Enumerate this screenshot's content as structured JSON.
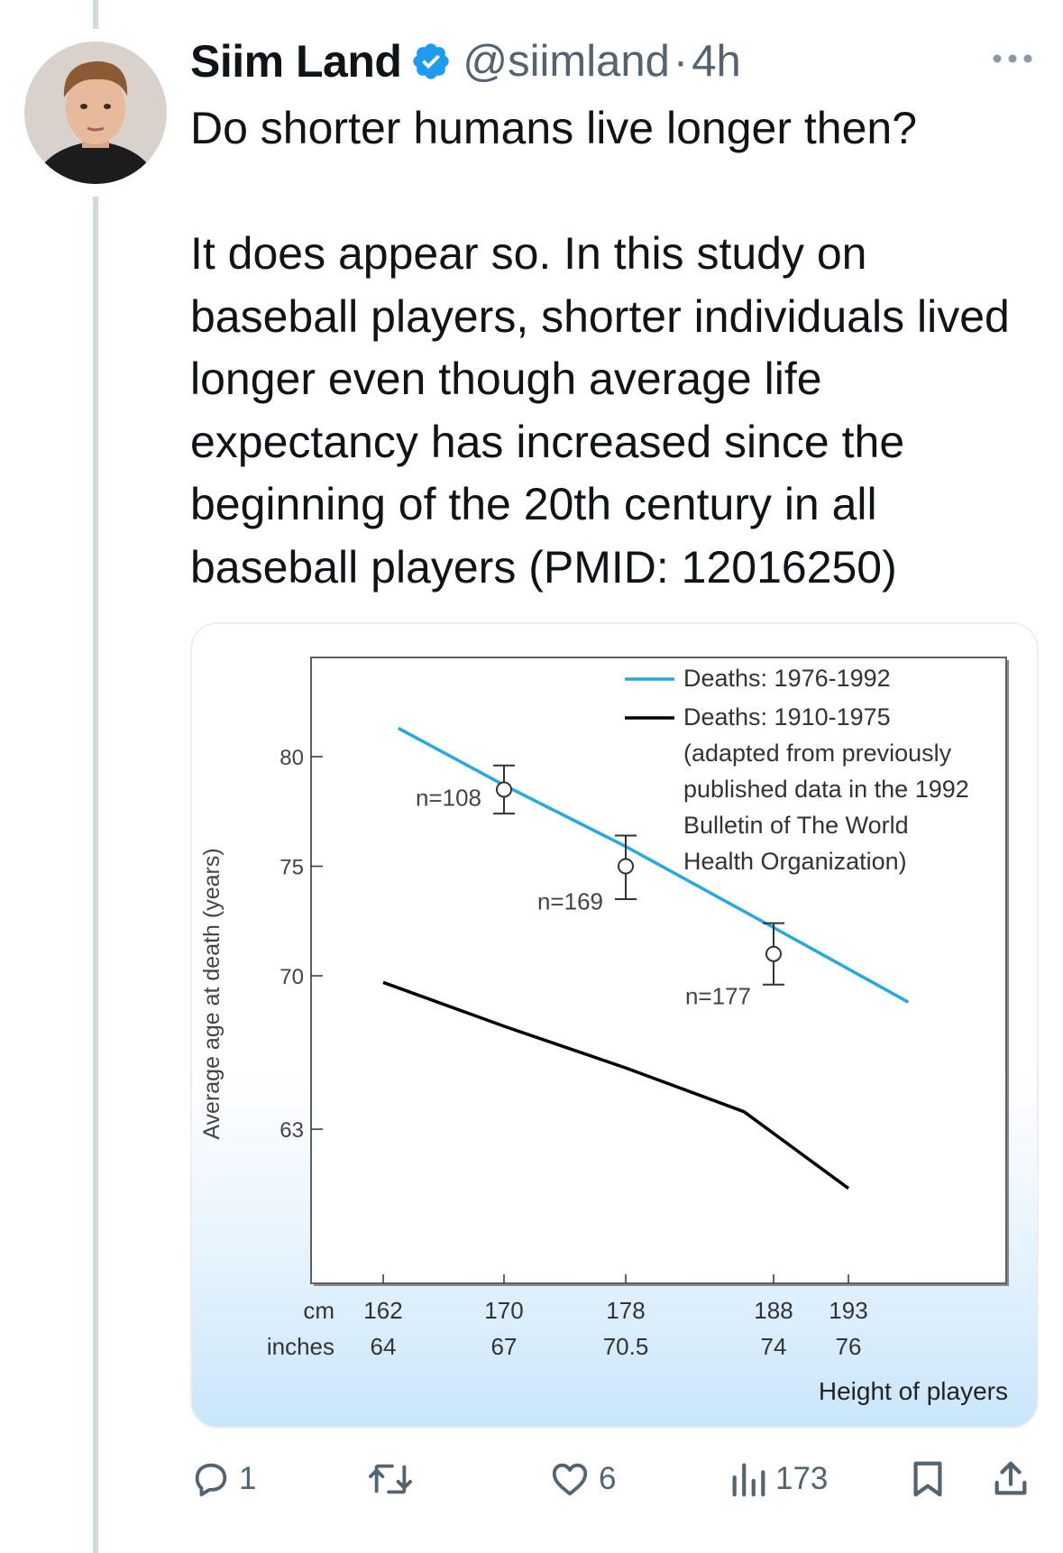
{
  "tweet": {
    "display_name": "Siim Land",
    "handle": "@siimland",
    "separator": "·",
    "time": "4h",
    "text": "Do shorter humans live longer then?\n\nIt does appear so. In this study on baseball players, shorter individuals lived longer even though average life expectancy has increased since the beginning of the 20th century in all baseball players (PMID: 12016250)"
  },
  "actions": {
    "reply_count": "1",
    "retweet_count": "",
    "like_count": "6",
    "views_count": "173"
  },
  "icons": {
    "verified": "verified-badge-icon",
    "more": "more-dots-icon",
    "reply": "reply-icon",
    "retweet": "retweet-icon",
    "like": "heart-icon",
    "views": "views-icon",
    "bookmark": "bookmark-icon",
    "share": "share-icon"
  },
  "colors": {
    "verified": "#1d9bf0",
    "recent_series": "#26a9e0",
    "old_series": "#000000",
    "muted": "#536471"
  },
  "chart_data": {
    "type": "line",
    "ylabel": "Average age at death (years)",
    "xlabel": "Height of players",
    "x_units": [
      "cm",
      "inches"
    ],
    "x_ticks_cm": [
      "162",
      "170",
      "178",
      "188",
      "193"
    ],
    "x_ticks_in": [
      "64",
      "67",
      "70.5",
      "74",
      "76"
    ],
    "y_ticks": [
      80,
      75,
      70,
      63
    ],
    "series": [
      {
        "name": "Deaths: 1976-1992",
        "color": "#26a9e0",
        "x": [
          163,
          170,
          178,
          188,
          197
        ],
        "y": [
          81.3,
          78.7,
          75.9,
          72.2,
          68.8
        ]
      },
      {
        "name": "Deaths: 1910-1975",
        "color": "#000000",
        "x": [
          162,
          170,
          178,
          186,
          193
        ],
        "y": [
          69.7,
          67.7,
          65.8,
          63.8,
          60.3
        ]
      }
    ],
    "error_bars": [
      {
        "x": 170,
        "y": 78.5,
        "low": 77.4,
        "high": 79.6,
        "label": "n=108"
      },
      {
        "x": 178,
        "y": 75.0,
        "low": 73.5,
        "high": 76.4,
        "label": "n=169"
      },
      {
        "x": 188,
        "y": 71.0,
        "low": 69.6,
        "high": 72.4,
        "label": "n=177"
      }
    ],
    "legend_note": [
      "(adapted from previously",
      "published data in the 1992",
      "Bulletin of The World",
      "Health Organization)"
    ],
    "legend_position": "top-right"
  }
}
